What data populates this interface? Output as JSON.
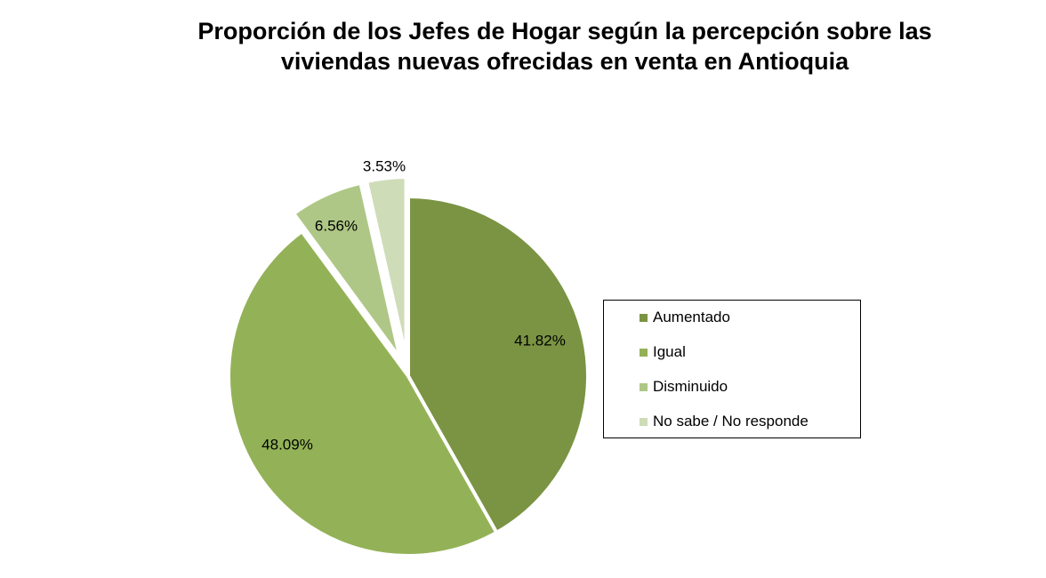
{
  "chart_data": {
    "type": "pie",
    "title_lines": [
      "Proporción de los Jefes de Hogar según la percepción sobre las",
      "viviendas nuevas ofrecidas en venta  en Antioquia"
    ],
    "slices": [
      {
        "label": "Aumentado",
        "value": 41.82,
        "value_label": "41.82%",
        "color": "#7a9443",
        "exploded": false
      },
      {
        "label": "Igual",
        "value": 48.09,
        "value_label": "48.09%",
        "color": "#93b257",
        "exploded": false
      },
      {
        "label": "Disminuido",
        "value": 6.56,
        "value_label": "6.56%",
        "color": "#aec786",
        "exploded": true
      },
      {
        "label": "No sabe / No responde",
        "value": 3.53,
        "value_label": "3.53%",
        "color": "#cfdcb8",
        "exploded": true
      }
    ],
    "legend_position": "right"
  }
}
